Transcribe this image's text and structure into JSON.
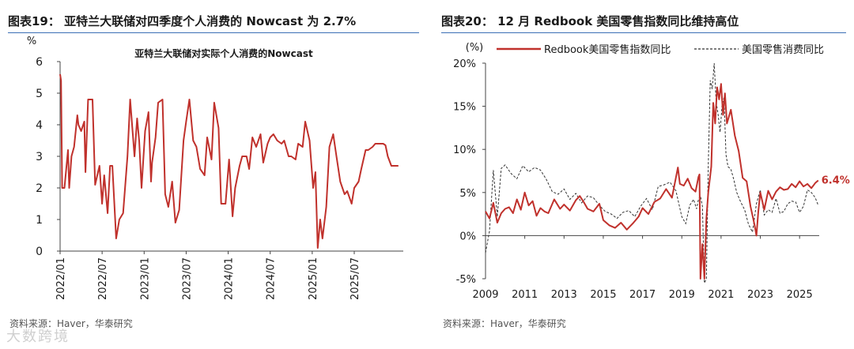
{
  "left": {
    "figure_title": "图表19：  亚特兰大联储对四季度个人消费的 Nowcast 为 2.7%",
    "source": "资料来源：Haver，华泰研究",
    "watermark": "大数跨境",
    "chart_data": {
      "type": "line",
      "title": "亚特兰大联储对实际个人消费的Nowcast",
      "ylabel": "%",
      "ylim": [
        0,
        6
      ],
      "yticks": [
        0,
        1,
        2,
        3,
        4,
        5,
        6
      ],
      "xlim": [
        "2022-01",
        "2026-02"
      ],
      "xtick_labels": [
        "2022/01",
        "2022/07",
        "2023/01",
        "2023/07",
        "2024/01",
        "2024/07",
        "2025/01",
        "2025/07"
      ],
      "grid": false,
      "color": "#c0312c",
      "series": [
        {
          "x": [
            "2022-01-01",
            "2022-01-05",
            "2022-01-10",
            "2022-01-20",
            "2022-02-05",
            "2022-02-10",
            "2022-02-20",
            "2022-03-01",
            "2022-03-15",
            "2022-03-20",
            "2022-04-01",
            "2022-04-15",
            "2022-04-20",
            "2022-05-01",
            "2022-05-20",
            "2022-06-01",
            "2022-06-20",
            "2022-07-01",
            "2022-07-10",
            "2022-07-25",
            "2022-08-05",
            "2022-08-15",
            "2022-09-01",
            "2022-09-15",
            "2022-10-01",
            "2022-10-20",
            "2022-11-01",
            "2022-11-20",
            "2022-12-01",
            "2022-12-10",
            "2022-12-20",
            "2023-01-05",
            "2023-01-20",
            "2023-01-31",
            "2023-02-05",
            "2023-02-20",
            "2023-03-01",
            "2023-03-20",
            "2023-04-01",
            "2023-04-15",
            "2023-05-01",
            "2023-05-15",
            "2023-06-01",
            "2023-06-20",
            "2023-07-01",
            "2023-07-15",
            "2023-08-01",
            "2023-08-15",
            "2023-09-01",
            "2023-09-20",
            "2023-10-01",
            "2023-10-20",
            "2023-11-01",
            "2023-11-20",
            "2023-12-01",
            "2023-12-20",
            "2024-01-05",
            "2024-01-20",
            "2024-02-01",
            "2024-02-20",
            "2024-03-01",
            "2024-03-20",
            "2024-04-01",
            "2024-04-15",
            "2024-05-01",
            "2024-05-20",
            "2024-06-01",
            "2024-06-20",
            "2024-07-01",
            "2024-07-15",
            "2024-08-01",
            "2024-08-20",
            "2024-09-01",
            "2024-09-20",
            "2024-10-01",
            "2024-10-20",
            "2024-11-01",
            "2024-11-20",
            "2024-12-01",
            "2024-12-20",
            "2025-01-05",
            "2025-01-15",
            "2025-01-25",
            "2025-02-05",
            "2025-02-15",
            "2025-03-01",
            "2025-03-15",
            "2025-04-01",
            "2025-04-15",
            "2025-05-01",
            "2025-05-20",
            "2025-06-01",
            "2025-06-20",
            "2025-07-01",
            "2025-07-20",
            "2025-08-01",
            "2025-08-20",
            "2025-09-01",
            "2025-09-20",
            "2025-10-01",
            "2025-10-20",
            "2025-11-05",
            "2025-11-15",
            "2025-11-25",
            "2025-12-10",
            "2026-01-10"
          ],
          "y": [
            5.6,
            5.4,
            2.0,
            2.0,
            3.2,
            2.0,
            3.0,
            3.3,
            4.3,
            4.0,
            3.8,
            4.1,
            2.5,
            4.8,
            4.8,
            2.1,
            2.7,
            1.5,
            2.4,
            1.2,
            2.7,
            2.7,
            0.4,
            1.0,
            1.2,
            3.0,
            4.8,
            3.0,
            4.2,
            3.5,
            2.0,
            3.8,
            4.4,
            2.2,
            2.8,
            3.6,
            4.7,
            4.8,
            1.8,
            1.4,
            2.2,
            0.9,
            1.3,
            3.5,
            4.1,
            4.8,
            3.5,
            3.3,
            2.6,
            2.4,
            3.6,
            2.9,
            4.7,
            3.9,
            1.5,
            1.5,
            2.9,
            1.1,
            2.0,
            2.7,
            3.0,
            3.0,
            2.6,
            3.6,
            3.3,
            3.7,
            2.8,
            3.4,
            3.6,
            3.7,
            3.5,
            3.4,
            3.5,
            3.0,
            3.0,
            2.9,
            3.4,
            3.3,
            4.1,
            3.5,
            2.0,
            2.5,
            0.1,
            1.0,
            0.4,
            1.4,
            3.3,
            3.7,
            3.0,
            2.2,
            1.8,
            1.9,
            1.5,
            2.0,
            2.2,
            2.6,
            3.2,
            3.2,
            3.3,
            3.4,
            3.4,
            3.4,
            3.35,
            3.0,
            2.7,
            2.7
          ]
        }
      ]
    }
  },
  "right": {
    "figure_title": "图表20：  12 月 Redbook 美国零售指数同比维持高位",
    "source": "资料来源：Haver，华泰研究",
    "chart_data": {
      "type": "line",
      "ylabel": "(%)",
      "ylim": [
        -5,
        20
      ],
      "yticks": [
        "-5%",
        "0%",
        "5%",
        "10%",
        "15%",
        "20%"
      ],
      "xlim": [
        2009.0,
        2026.0
      ],
      "xtick_labels": [
        "2009",
        "2011",
        "2013",
        "2015",
        "2017",
        "2019",
        "2021",
        "2023",
        "2025"
      ],
      "grid": false,
      "annotation": "6.4%",
      "series": [
        {
          "name": "Redbook美国零售指数同比",
          "color": "#c0312c",
          "style": "solid",
          "x": [
            2009.0,
            2009.2,
            2009.4,
            2009.6,
            2009.8,
            2010.0,
            2010.2,
            2010.4,
            2010.6,
            2010.8,
            2011.0,
            2011.2,
            2011.4,
            2011.6,
            2011.8,
            2012.0,
            2012.2,
            2012.5,
            2012.8,
            2013.0,
            2013.3,
            2013.6,
            2013.8,
            2014.0,
            2014.2,
            2014.5,
            2014.8,
            2015.0,
            2015.3,
            2015.6,
            2015.9,
            2016.2,
            2016.5,
            2016.8,
            2017.0,
            2017.3,
            2017.6,
            2017.9,
            2018.2,
            2018.5,
            2018.8,
            2018.9,
            2019.1,
            2019.3,
            2019.5,
            2019.7,
            2019.85,
            2019.9,
            2019.95,
            2020.05,
            2020.15,
            2020.25,
            2020.35,
            2020.5,
            2020.6,
            2020.7,
            2020.8,
            2020.9,
            2021.0,
            2021.1,
            2021.2,
            2021.3,
            2021.5,
            2021.7,
            2021.9,
            2022.1,
            2022.3,
            2022.5,
            2022.7,
            2022.8,
            2022.9,
            2023.0,
            2023.2,
            2023.4,
            2023.6,
            2023.8,
            2024.0,
            2024.2,
            2024.4,
            2024.6,
            2024.8,
            2025.0,
            2025.2,
            2025.4,
            2025.6,
            2025.8,
            2025.95
          ],
          "y": [
            2.8,
            2.0,
            3.8,
            1.5,
            2.6,
            3.1,
            3.3,
            2.6,
            4.2,
            3.0,
            5.0,
            3.5,
            4.0,
            2.3,
            3.2,
            2.8,
            2.6,
            4.2,
            3.1,
            3.6,
            2.9,
            4.1,
            4.6,
            3.9,
            3.1,
            2.8,
            3.7,
            1.8,
            1.2,
            0.9,
            1.5,
            0.7,
            1.4,
            2.2,
            3.2,
            2.5,
            3.9,
            4.3,
            5.4,
            4.4,
            7.9,
            6.0,
            5.8,
            6.6,
            5.5,
            5.1,
            6.8,
            7.1,
            -5.0,
            -1.0,
            -5.0,
            2.0,
            5.0,
            8.0,
            15.4,
            13.0,
            17.2,
            15.8,
            17.6,
            14.0,
            16.5,
            13.0,
            14.6,
            11.6,
            9.8,
            6.7,
            6.3,
            3.4,
            1.3,
            0.0,
            2.8,
            5.0,
            3.0,
            5.2,
            4.2,
            5.1,
            5.6,
            5.3,
            5.4,
            6.0,
            5.6,
            6.3,
            5.7,
            6.0,
            5.5,
            6.1,
            6.4
          ]
        },
        {
          "name": "美国零售消费同比",
          "color": "#333333",
          "style": "dashed",
          "x": [
            2009.0,
            2009.2,
            2009.4,
            2009.6,
            2009.8,
            2010.0,
            2010.3,
            2010.6,
            2010.9,
            2011.2,
            2011.5,
            2011.8,
            2012.1,
            2012.4,
            2012.7,
            2013.0,
            2013.3,
            2013.6,
            2013.9,
            2014.2,
            2014.5,
            2014.8,
            2015.1,
            2015.4,
            2015.7,
            2016.0,
            2016.3,
            2016.6,
            2016.9,
            2017.2,
            2017.5,
            2017.8,
            2018.1,
            2018.4,
            2018.7,
            2019.0,
            2019.2,
            2019.4,
            2019.6,
            2019.75,
            2019.85,
            2019.95,
            2020.05,
            2020.15,
            2020.25,
            2020.35,
            2020.45,
            2020.55,
            2020.65,
            2020.75,
            2020.85,
            2020.95,
            2021.05,
            2021.15,
            2021.25,
            2021.35,
            2021.5,
            2021.65,
            2021.8,
            2022.0,
            2022.2,
            2022.4,
            2022.6,
            2022.8,
            2023.0,
            2023.2,
            2023.4,
            2023.6,
            2023.8,
            2024.0,
            2024.2,
            2024.4,
            2024.6,
            2024.8,
            2025.0,
            2025.2,
            2025.4,
            2025.6,
            2025.8,
            2025.95
          ],
          "y": [
            -2.0,
            0.5,
            7.6,
            2.2,
            7.8,
            8.2,
            7.2,
            6.6,
            8.1,
            7.4,
            7.9,
            7.6,
            6.5,
            5.1,
            4.8,
            5.4,
            4.2,
            4.9,
            3.8,
            4.6,
            4.4,
            3.5,
            2.8,
            2.5,
            2.0,
            2.7,
            2.9,
            2.2,
            3.4,
            4.3,
            3.0,
            5.7,
            5.9,
            6.2,
            5.2,
            2.2,
            1.4,
            3.5,
            4.2,
            3.1,
            4.2,
            4.6,
            3.4,
            -5.5,
            -5.0,
            8.0,
            18.0,
            17.0,
            20.0,
            15.5,
            14.0,
            12.0,
            15.0,
            16.0,
            9.4,
            8.0,
            7.7,
            6.5,
            5.0,
            3.9,
            3.0,
            1.3,
            0.4,
            3.7,
            5.3,
            2.4,
            3.0,
            2.7,
            4.3,
            2.6,
            2.8,
            3.7,
            4.0,
            3.9,
            2.7,
            3.4,
            5.3,
            5.0,
            4.4,
            3.5
          ]
        }
      ]
    }
  }
}
